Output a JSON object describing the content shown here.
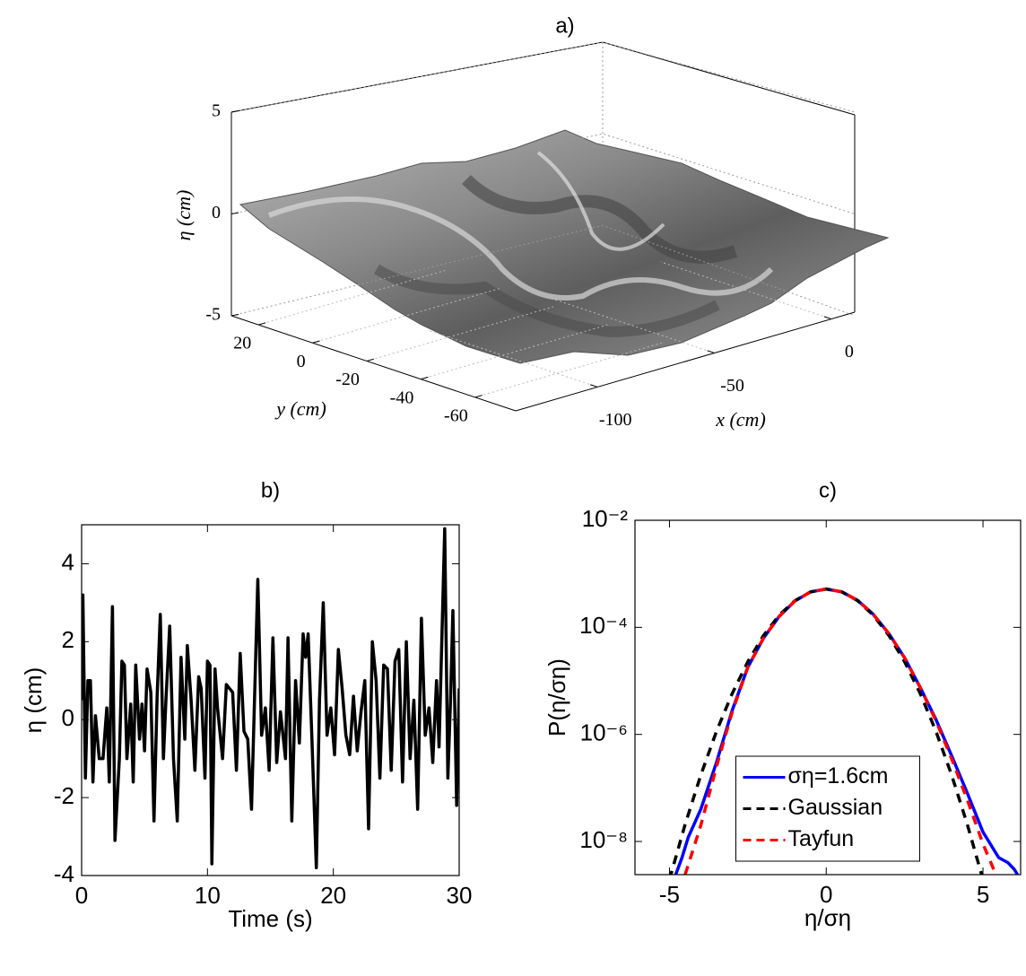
{
  "chart_data": [
    {
      "type": "surface",
      "title": "a)",
      "xlabel": "x (cm)",
      "ylabel": "y (cm)",
      "zlabel": "η (cm)",
      "xlim": [
        -135,
        10
      ],
      "xticks": [
        -100,
        -50,
        0
      ],
      "ylim": [
        -75,
        30
      ],
      "yticks": [
        -60,
        -40,
        -20,
        0,
        20
      ],
      "zlim": [
        -5,
        5
      ],
      "zticks": [
        -5,
        0,
        5
      ],
      "grid": true
    },
    {
      "type": "line",
      "title": "b)",
      "xlabel": "Time (s)",
      "ylabel": "η (cm)",
      "xlim": [
        0,
        30
      ],
      "xticks": [
        0,
        10,
        20,
        30
      ],
      "ylim": [
        -4,
        5
      ],
      "yticks": [
        -4,
        -2,
        0,
        2,
        4
      ],
      "grid": false,
      "series": [
        {
          "color": "#000000",
          "linestyle": "solid",
          "x": [
            0,
            0.1,
            0.3,
            0.5,
            0.7,
            0.9,
            1.1,
            1.4,
            1.7,
            2.0,
            2.2,
            2.45,
            2.65,
            3.0,
            3.2,
            3.4,
            3.6,
            3.9,
            4.1,
            4.3,
            4.6,
            4.8,
            5.0,
            5.2,
            5.5,
            5.75,
            6.0,
            6.25,
            6.5,
            6.7,
            7.0,
            7.3,
            7.6,
            7.9,
            8.2,
            8.4,
            8.7,
            9.0,
            9.3,
            9.5,
            9.8,
            10.0,
            10.2,
            10.35,
            10.6,
            10.8,
            11.2,
            11.5,
            12.0,
            12.3,
            12.6,
            12.9,
            13.2,
            13.5,
            14.0,
            14.3,
            14.6,
            14.9,
            15.2,
            15.5,
            15.8,
            16.2,
            16.4,
            16.7,
            17.0,
            17.3,
            17.6,
            17.8,
            18.0,
            18.3,
            18.65,
            18.9,
            19.2,
            19.5,
            19.8,
            20.1,
            20.4,
            20.7,
            21.0,
            21.3,
            21.6,
            21.9,
            22.2,
            22.5,
            22.8,
            23.1,
            23.4,
            23.7,
            24.0,
            24.3,
            24.6,
            24.9,
            25.2,
            25.5,
            25.8,
            26.1,
            26.4,
            26.7,
            27.0,
            27.3,
            27.6,
            27.9,
            28.2,
            28.4,
            28.85,
            29.1,
            29.3,
            29.5,
            29.8,
            30.0
          ],
          "values": [
            0.5,
            3.2,
            -1.5,
            1.0,
            1.0,
            -1.6,
            0.1,
            -1.0,
            -1.0,
            0.3,
            -1.6,
            2.9,
            -3.1,
            -1.0,
            1.5,
            1.4,
            -1.0,
            0.4,
            -1.6,
            1.4,
            -0.5,
            0.4,
            -0.8,
            1.3,
            0.7,
            -2.6,
            0.6,
            2.7,
            -1.0,
            0.5,
            2.4,
            -1.0,
            -2.6,
            1.6,
            -0.5,
            1.9,
            0.5,
            -1.3,
            1.1,
            0.8,
            -1.5,
            1.5,
            1.4,
            -3.7,
            1.3,
            0.3,
            -1.0,
            0.9,
            0.7,
            -1.3,
            1.7,
            -0.3,
            -0.5,
            -2.3,
            3.6,
            -0.4,
            0.3,
            -1.3,
            2.1,
            -1.1,
            0.2,
            -1.0,
            2.1,
            -2.6,
            1.0,
            -0.6,
            2.2,
            1.6,
            2.2,
            -0.5,
            -3.8,
            0.5,
            3.0,
            -0.4,
            0.3,
            -0.9,
            1.8,
            0.8,
            -0.4,
            -0.9,
            0.6,
            -0.8,
            0.2,
            1.0,
            -2.8,
            2.0,
            1.0,
            -1.5,
            1.4,
            1.3,
            -1.3,
            1.5,
            1.8,
            -1.6,
            2.0,
            -1.0,
            0.5,
            -2.3,
            2.6,
            -0.4,
            0.3,
            -1.1,
            1.0,
            -0.7,
            4.9,
            -1.5,
            0.4,
            2.8,
            -2.2,
            0.8
          ]
        }
      ]
    },
    {
      "type": "line",
      "title": "c)",
      "xlabel": "η/ση",
      "ylabel": "P(η/ση)",
      "xlim": [
        -6.1,
        6.2
      ],
      "xticks": [
        -5,
        0,
        5
      ],
      "ylim": [
        2.4e-09,
        0.01
      ],
      "ylog": true,
      "yticks": [
        {
          "value": 1e-08,
          "label": "10⁻⁸"
        },
        {
          "value": 1e-06,
          "label": "10⁻⁶"
        },
        {
          "value": 0.0001,
          "label": "10⁻⁴"
        },
        {
          "value": 0.01,
          "label": "10⁻²"
        }
      ],
      "grid": false,
      "legend": "lower center",
      "series": [
        {
          "name": "ση=1.6cm",
          "color": "#0000ff",
          "linestyle": "solid",
          "x": [
            -4.8,
            -4.6,
            -4.4,
            -4.0,
            -3.5,
            -3.0,
            -2.5,
            -2.0,
            -1.5,
            -1.0,
            -0.5,
            0,
            0.5,
            1.0,
            1.5,
            2.0,
            2.5,
            3.0,
            3.5,
            4.0,
            4.5,
            5.0,
            5.5,
            5.8,
            6.0,
            6.1
          ],
          "values": [
            2.4e-09,
            5e-09,
            1.2e-08,
            4e-08,
            3e-07,
            2.8e-06,
            1.8e-05,
            6.3e-05,
            0.00016,
            0.00031,
            0.00046,
            0.00052,
            0.00046,
            0.00032,
            0.000175,
            7.6e-05,
            2.7e-05,
            7.5e-06,
            1.9e-06,
            4e-07,
            8e-08,
            1.5e-08,
            5e-09,
            4e-09,
            3e-09,
            2.4e-09
          ]
        },
        {
          "name": "Gaussian",
          "color": "#000000",
          "linestyle": "dashed",
          "x": [
            -5.0,
            -4.5,
            -4.0,
            -3.5,
            -3.0,
            -2.5,
            -2.0,
            -1.5,
            -1.0,
            -0.5,
            0,
            0.5,
            1.0,
            1.5,
            2.0,
            2.5,
            3.0,
            3.5,
            4.0,
            4.5,
            5.0
          ],
          "values": [
            1.94e-09,
            2.08e-08,
            1.74e-07,
            1.14e-06,
            5.78e-06,
            2.28e-05,
            7.04e-05,
            0.000169,
            0.000315,
            0.000459,
            0.00052,
            0.000459,
            0.000315,
            0.000169,
            7.04e-05,
            2.28e-05,
            5.78e-06,
            1.14e-06,
            1.74e-07,
            2.08e-08,
            1.94e-09
          ]
        },
        {
          "name": "Tayfun",
          "color": "#ff0000",
          "linestyle": "dashed",
          "x": [
            -4.5,
            -4.0,
            -3.5,
            -3.0,
            -2.5,
            -2.0,
            -1.5,
            -1.0,
            -0.5,
            0,
            0.5,
            1.0,
            1.5,
            2.0,
            2.5,
            3.0,
            3.5,
            4.0,
            4.5,
            5.0,
            5.5
          ],
          "values": [
            2.4e-09,
            2e-08,
            2.5e-07,
            2.6e-06,
            1.8e-05,
            6.3e-05,
            0.00016,
            0.00031,
            0.00046,
            0.00052,
            0.00046,
            0.00032,
            0.000175,
            7.6e-05,
            2.7e-05,
            7.5e-06,
            1.8e-06,
            3.5e-07,
            6e-08,
            9e-09,
            1.8e-09
          ]
        }
      ]
    }
  ]
}
